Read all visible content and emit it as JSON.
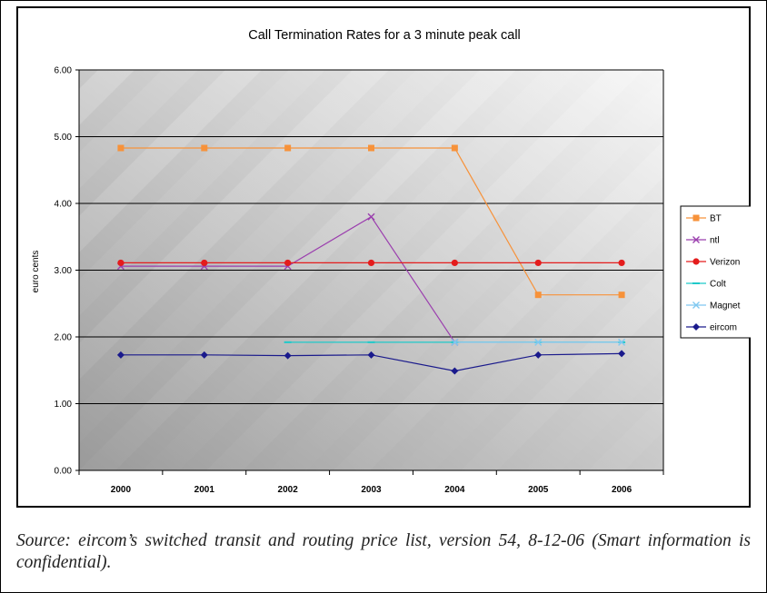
{
  "chart_data": {
    "type": "line",
    "title": "Call Termination Rates for a 3 minute peak call",
    "xlabel": "",
    "ylabel": "euro cents",
    "ylim": [
      0,
      6
    ],
    "yticks": [
      "0.00",
      "1.00",
      "2.00",
      "3.00",
      "4.00",
      "5.00",
      "6.00"
    ],
    "categories": [
      "2000",
      "2001",
      "2002",
      "2003",
      "2004",
      "2005",
      "2006"
    ],
    "grid": true,
    "legend_position": "right",
    "series": [
      {
        "name": "BT",
        "color": "#f7923a",
        "marker": "square",
        "values": [
          4.83,
          4.83,
          4.83,
          4.83,
          4.83,
          2.63,
          2.63
        ]
      },
      {
        "name": "ntl",
        "color": "#9b3fae",
        "marker": "x",
        "values": [
          3.06,
          3.06,
          3.06,
          3.8,
          1.92,
          null,
          null
        ]
      },
      {
        "name": "Verizon",
        "color": "#e41c1c",
        "marker": "circle",
        "values": [
          3.11,
          3.11,
          3.11,
          3.11,
          3.11,
          3.11,
          3.11
        ]
      },
      {
        "name": "Colt",
        "color": "#1fc9c9",
        "marker": "dash",
        "values": [
          null,
          null,
          1.92,
          1.92,
          1.92,
          1.92,
          1.92
        ]
      },
      {
        "name": "Magnet",
        "color": "#7fc8f0",
        "marker": "x",
        "values": [
          null,
          null,
          null,
          null,
          1.92,
          1.92,
          1.92
        ]
      },
      {
        "name": "eircom",
        "color": "#1a1a8c",
        "marker": "diamond",
        "values": [
          1.73,
          1.73,
          1.72,
          1.73,
          1.49,
          1.73,
          1.75
        ]
      }
    ]
  },
  "caption": "Source: eircom’s switched transit and routing price list, version 54, 8-12-06 (Smart information is confidential)."
}
